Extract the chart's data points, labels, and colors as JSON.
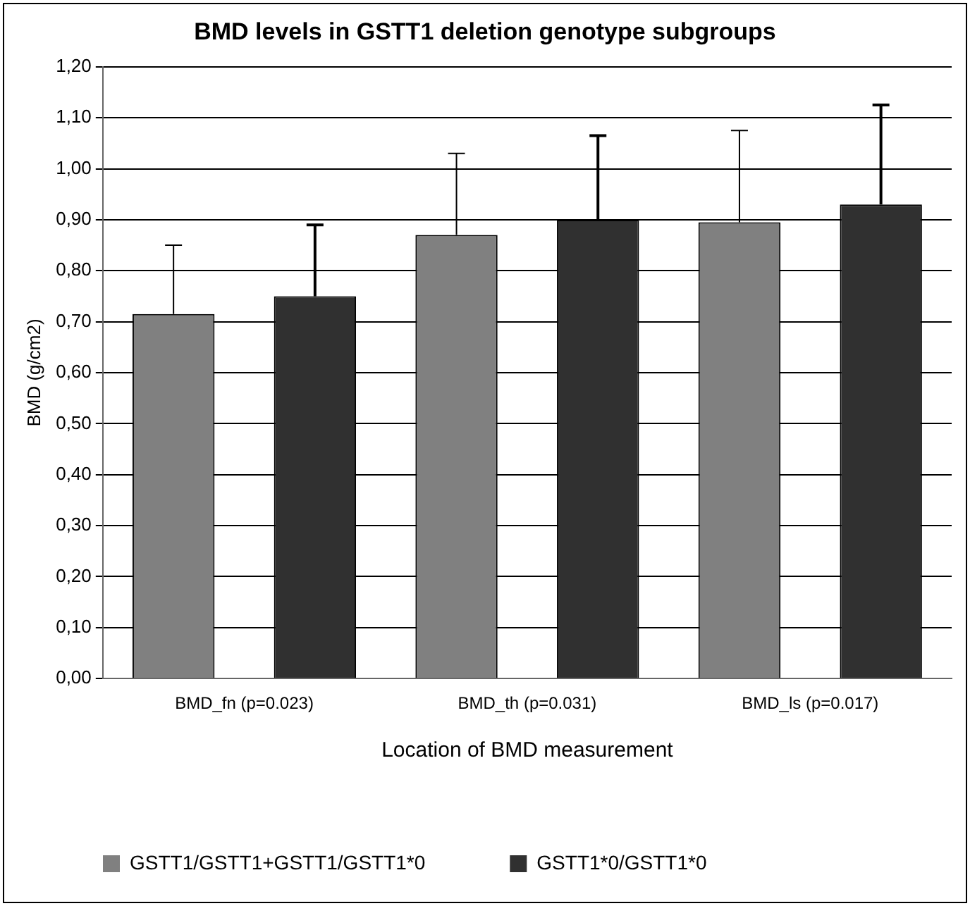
{
  "chart_data": {
    "type": "bar",
    "title": "BMD levels in GSTT1 deletion genotype subgroups",
    "xlabel": "Location of BMD measurement",
    "ylabel": "BMD (g/cm2)",
    "categories": [
      "BMD_fn (p=0.023)",
      "BMD_th (p=0.031)",
      "BMD_ls (p=0.017)"
    ],
    "series": [
      {
        "name": "GSTT1/GSTT1+GSTT1/GSTT1*0",
        "color": "#808080",
        "values": [
          0.715,
          0.87,
          0.895
        ],
        "errors": [
          [
            0.715,
            0.85
          ],
          [
            0.87,
            1.03
          ],
          [
            0.895,
            1.075
          ]
        ]
      },
      {
        "name": "GSTT1*0/GSTT1*0",
        "color": "#303030",
        "values": [
          0.75,
          0.9,
          0.93
        ],
        "errors": [
          [
            0.75,
            0.89
          ],
          [
            0.9,
            1.065
          ],
          [
            0.93,
            1.125
          ]
        ]
      }
    ],
    "ylim": [
      0,
      1.2
    ],
    "yticks": [
      {
        "value": 0,
        "label": "0,00"
      },
      {
        "value": 0.1,
        "label": "0,10"
      },
      {
        "value": 0.2,
        "label": "0,20"
      },
      {
        "value": 0.3,
        "label": "0,30"
      },
      {
        "value": 0.4,
        "label": "0,40"
      },
      {
        "value": 0.5,
        "label": "0,50"
      },
      {
        "value": 0.6,
        "label": "0,60"
      },
      {
        "value": 0.7,
        "label": "0,70"
      },
      {
        "value": 0.8,
        "label": "0,80"
      },
      {
        "value": 0.9,
        "label": "0,90"
      },
      {
        "value": 1.0,
        "label": "1,00"
      },
      {
        "value": 1.1,
        "label": "1,10"
      },
      {
        "value": 1.2,
        "label": "1,20"
      }
    ],
    "grid": "y",
    "legend": "bottom"
  }
}
